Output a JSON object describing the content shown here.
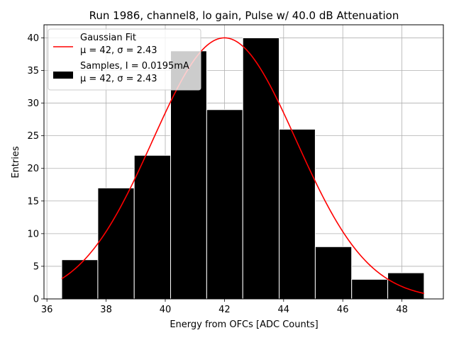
{
  "chart_data": {
    "type": "bar",
    "title": "Run 1986, channel8, lo gain, Pulse w/ 40.0 dB Attenuation",
    "xlabel": "Energy from OFCs [ADC Counts]",
    "ylabel": "Entries",
    "xlim": [
      35.9,
      49.4
    ],
    "ylim": [
      0,
      42
    ],
    "grid": true,
    "xticks": [
      36,
      38,
      40,
      42,
      44,
      46,
      48
    ],
    "yticks": [
      0,
      5,
      10,
      15,
      20,
      25,
      30,
      35,
      40
    ],
    "bin_edges": [
      36.5,
      37.72,
      38.95,
      40.18,
      41.4,
      42.62,
      43.85,
      45.07,
      46.3,
      47.52,
      48.75
    ],
    "values": [
      6,
      17,
      22,
      38,
      29,
      40,
      26,
      8,
      3,
      4
    ],
    "bar_color": "#000000",
    "fit": {
      "name": "Gaussian Fit",
      "mu": 42,
      "sigma": 2.43,
      "amplitude": 40,
      "x_range": [
        36.5,
        48.75
      ],
      "color": "#ff0000"
    },
    "legend": {
      "placement": "top-left",
      "entries": [
        {
          "kind": "line",
          "color": "#ff0000",
          "line1": "Gaussian Fit",
          "line2": "μ = 42, σ = 2.43"
        },
        {
          "kind": "patch",
          "color": "#000000",
          "line1": "Samples, I = 0.0195mA",
          "line2": "μ = 42, σ = 2.43"
        }
      ]
    }
  }
}
